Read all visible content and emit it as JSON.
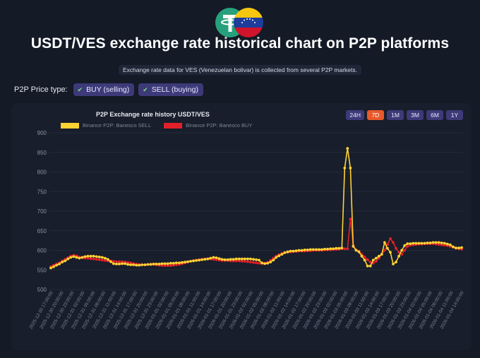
{
  "header": {
    "title": "USDT/VES exchange rate historical chart on P2P platforms",
    "subtitle": "Exchange rate data for VES (Venezuelan bolivar) is collected from several P2P markets."
  },
  "price_type": {
    "label": "P2P Price type:",
    "options": [
      "BUY (selling)",
      "SELL (buying)"
    ]
  },
  "ranges": [
    "24H",
    "7D",
    "1M",
    "3M",
    "6M",
    "1Y"
  ],
  "active_range": "7D",
  "colors": {
    "sell": "#ffd234",
    "buy": "#e2202a",
    "active": "#e8592a"
  },
  "chart_data": {
    "type": "line",
    "title": "P2P Exchange rate history USDT/VES",
    "ylim": [
      500,
      900
    ],
    "yticks": [
      500,
      550,
      600,
      650,
      700,
      750,
      800,
      850,
      900
    ],
    "xlabels": [
      "2025-12-30 17:00:00",
      "2025-12-30 20:00:00",
      "2025-12-30 23:00:00",
      "2025-12-31 02:00:00",
      "2025-12-31 05:00:00",
      "2025-12-31 08:00:00",
      "2025-12-31 11:00:00",
      "2025-12-31 14:00:00",
      "2025-12-31 17:00:00",
      "2025-12-31 20:00:00",
      "2025-12-31 23:00:00",
      "2026-01-01 02:00:00",
      "2026-01-01 05:00:00",
      "2026-01-01 08:00:00",
      "2026-01-01 11:00:00",
      "2026-01-01 14:00:00",
      "2026-01-01 17:00:00",
      "2026-01-01 20:00:00",
      "2026-01-01 23:00:00",
      "2026-01-02 02:00:00",
      "2026-01-02 05:00:00",
      "2026-01-02 08:00:00",
      "2026-01-02 11:00:00",
      "2026-01-02 14:00:00",
      "2026-01-02 17:00:00",
      "2026-01-02 20:00:00",
      "2026-01-02 23:00:00",
      "2026-01-03 02:00:00",
      "2026-01-03 05:00:00",
      "2026-01-03 08:00:00",
      "2026-01-03 11:00:00",
      "2026-01-03 14:00:00",
      "2026-01-03 17:00:00",
      "2026-01-03 20:00:00",
      "2026-01-03 23:00:00",
      "2026-01-04 02:00:00",
      "2026-01-04 05:00:00",
      "2026-01-04 08:00:00",
      "2026-01-04 11:00:00",
      "2026-01-04 14:00:00"
    ],
    "series": [
      {
        "name": "Binance P2P: Banesco SELL",
        "color": "#ffd234",
        "values": [
          555,
          558,
          562,
          565,
          570,
          573,
          578,
          582,
          584,
          582,
          580,
          582,
          584,
          585,
          585,
          585,
          584,
          583,
          582,
          580,
          577,
          571,
          566,
          565,
          565,
          566,
          566,
          564,
          563,
          563,
          562,
          562,
          563,
          563,
          564,
          564,
          565,
          565,
          565,
          566,
          566,
          566,
          567,
          567,
          568,
          568,
          569,
          570,
          571,
          572,
          573,
          574,
          575,
          576,
          577,
          578,
          580,
          582,
          581,
          579,
          577,
          576,
          576,
          577,
          577,
          578,
          578,
          578,
          578,
          578,
          578,
          577,
          576,
          575,
          568,
          566,
          567,
          570,
          575,
          582,
          586,
          590,
          594,
          596,
          598,
          598,
          599,
          600,
          600,
          601,
          601,
          602,
          602,
          602,
          602,
          602,
          603,
          603,
          604,
          604,
          605,
          605,
          606,
          810,
          860,
          810,
          610,
          600,
          596,
          585,
          575,
          560,
          560,
          575,
          580,
          585,
          590,
          620,
          605,
          595,
          565,
          570,
          585,
          600,
          612,
          617,
          617,
          618,
          618,
          618,
          618,
          618,
          619,
          619,
          620,
          620,
          620,
          619,
          618,
          616,
          614,
          609,
          606,
          606,
          607
        ]
      },
      {
        "name": "Binance P2P: Banesco BUY",
        "color": "#e2202a",
        "values": [
          558,
          562,
          565,
          568,
          573,
          577,
          581,
          585,
          587,
          586,
          583,
          581,
          580,
          580,
          579,
          578,
          577,
          576,
          575,
          574,
          573,
          573,
          572,
          571,
          571,
          571,
          570,
          569,
          568,
          566,
          565,
          564,
          563,
          563,
          564,
          565,
          564,
          563,
          562,
          561,
          561,
          561,
          561,
          562,
          563,
          564,
          566,
          568,
          570,
          572,
          574,
          575,
          576,
          577,
          578,
          578,
          578,
          577,
          576,
          575,
          574,
          574,
          574,
          573,
          573,
          573,
          573,
          572,
          572,
          571,
          570,
          569,
          568,
          567,
          566,
          567,
          569,
          574,
          580,
          585,
          589,
          592,
          594,
          595,
          596,
          597,
          597,
          598,
          598,
          598,
          599,
          599,
          600,
          600,
          600,
          600,
          601,
          601,
          601,
          602,
          602,
          603,
          604,
          604,
          604,
          680,
          612,
          601,
          598,
          590,
          583,
          576,
          570,
          567,
          572,
          580,
          590,
          600,
          615,
          630,
          620,
          605,
          595,
          590,
          600,
          610,
          613,
          614,
          615,
          616,
          616,
          617,
          617,
          617,
          617,
          616,
          615,
          614,
          613,
          612,
          610,
          608,
          606,
          604,
          603
        ]
      }
    ]
  }
}
